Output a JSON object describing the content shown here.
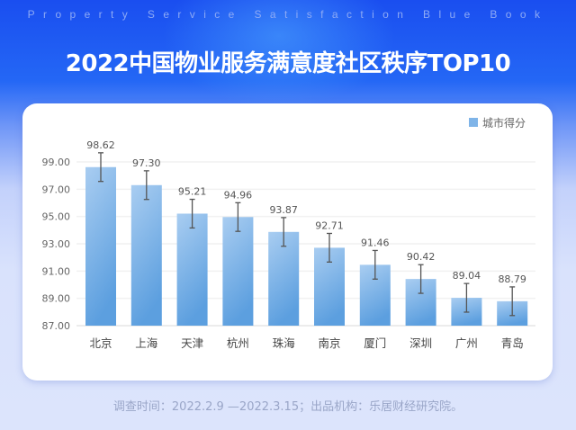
{
  "header": {
    "subtitle": "Property Service Satisfaction Blue Book",
    "title": "2022中国物业服务满意度社区秩序TOP10"
  },
  "footer": {
    "text": "调查时间：2022.2.9 —2022.3.15；出品机构：乐居财经研究院。"
  },
  "colors": {
    "bar_top": "#a9cdf1",
    "bar_bottom": "#5c9fdf",
    "error_bar": "#555555"
  },
  "chart_data": {
    "type": "bar",
    "title": "2022中国物业服务满意度社区秩序TOP10",
    "legend": {
      "label": "城市得分",
      "position": "top-right"
    },
    "categories": [
      "北京",
      "上海",
      "天津",
      "杭州",
      "珠海",
      "南京",
      "厦门",
      "深圳",
      "广州",
      "青岛"
    ],
    "values": [
      98.62,
      97.3,
      95.21,
      94.96,
      93.87,
      92.71,
      91.46,
      90.42,
      89.04,
      88.79
    ],
    "value_labels": [
      "98.62",
      "97.30",
      "95.21",
      "94.96",
      "93.87",
      "92.71",
      "91.46",
      "90.42",
      "89.04",
      "88.79"
    ],
    "error": 1.05,
    "ylim": [
      87,
      99
    ],
    "yticks": [
      "87.00",
      "89.00",
      "91.00",
      "93.00",
      "95.00",
      "97.00",
      "99.00"
    ],
    "grid": true,
    "xlabel": "",
    "ylabel": ""
  }
}
